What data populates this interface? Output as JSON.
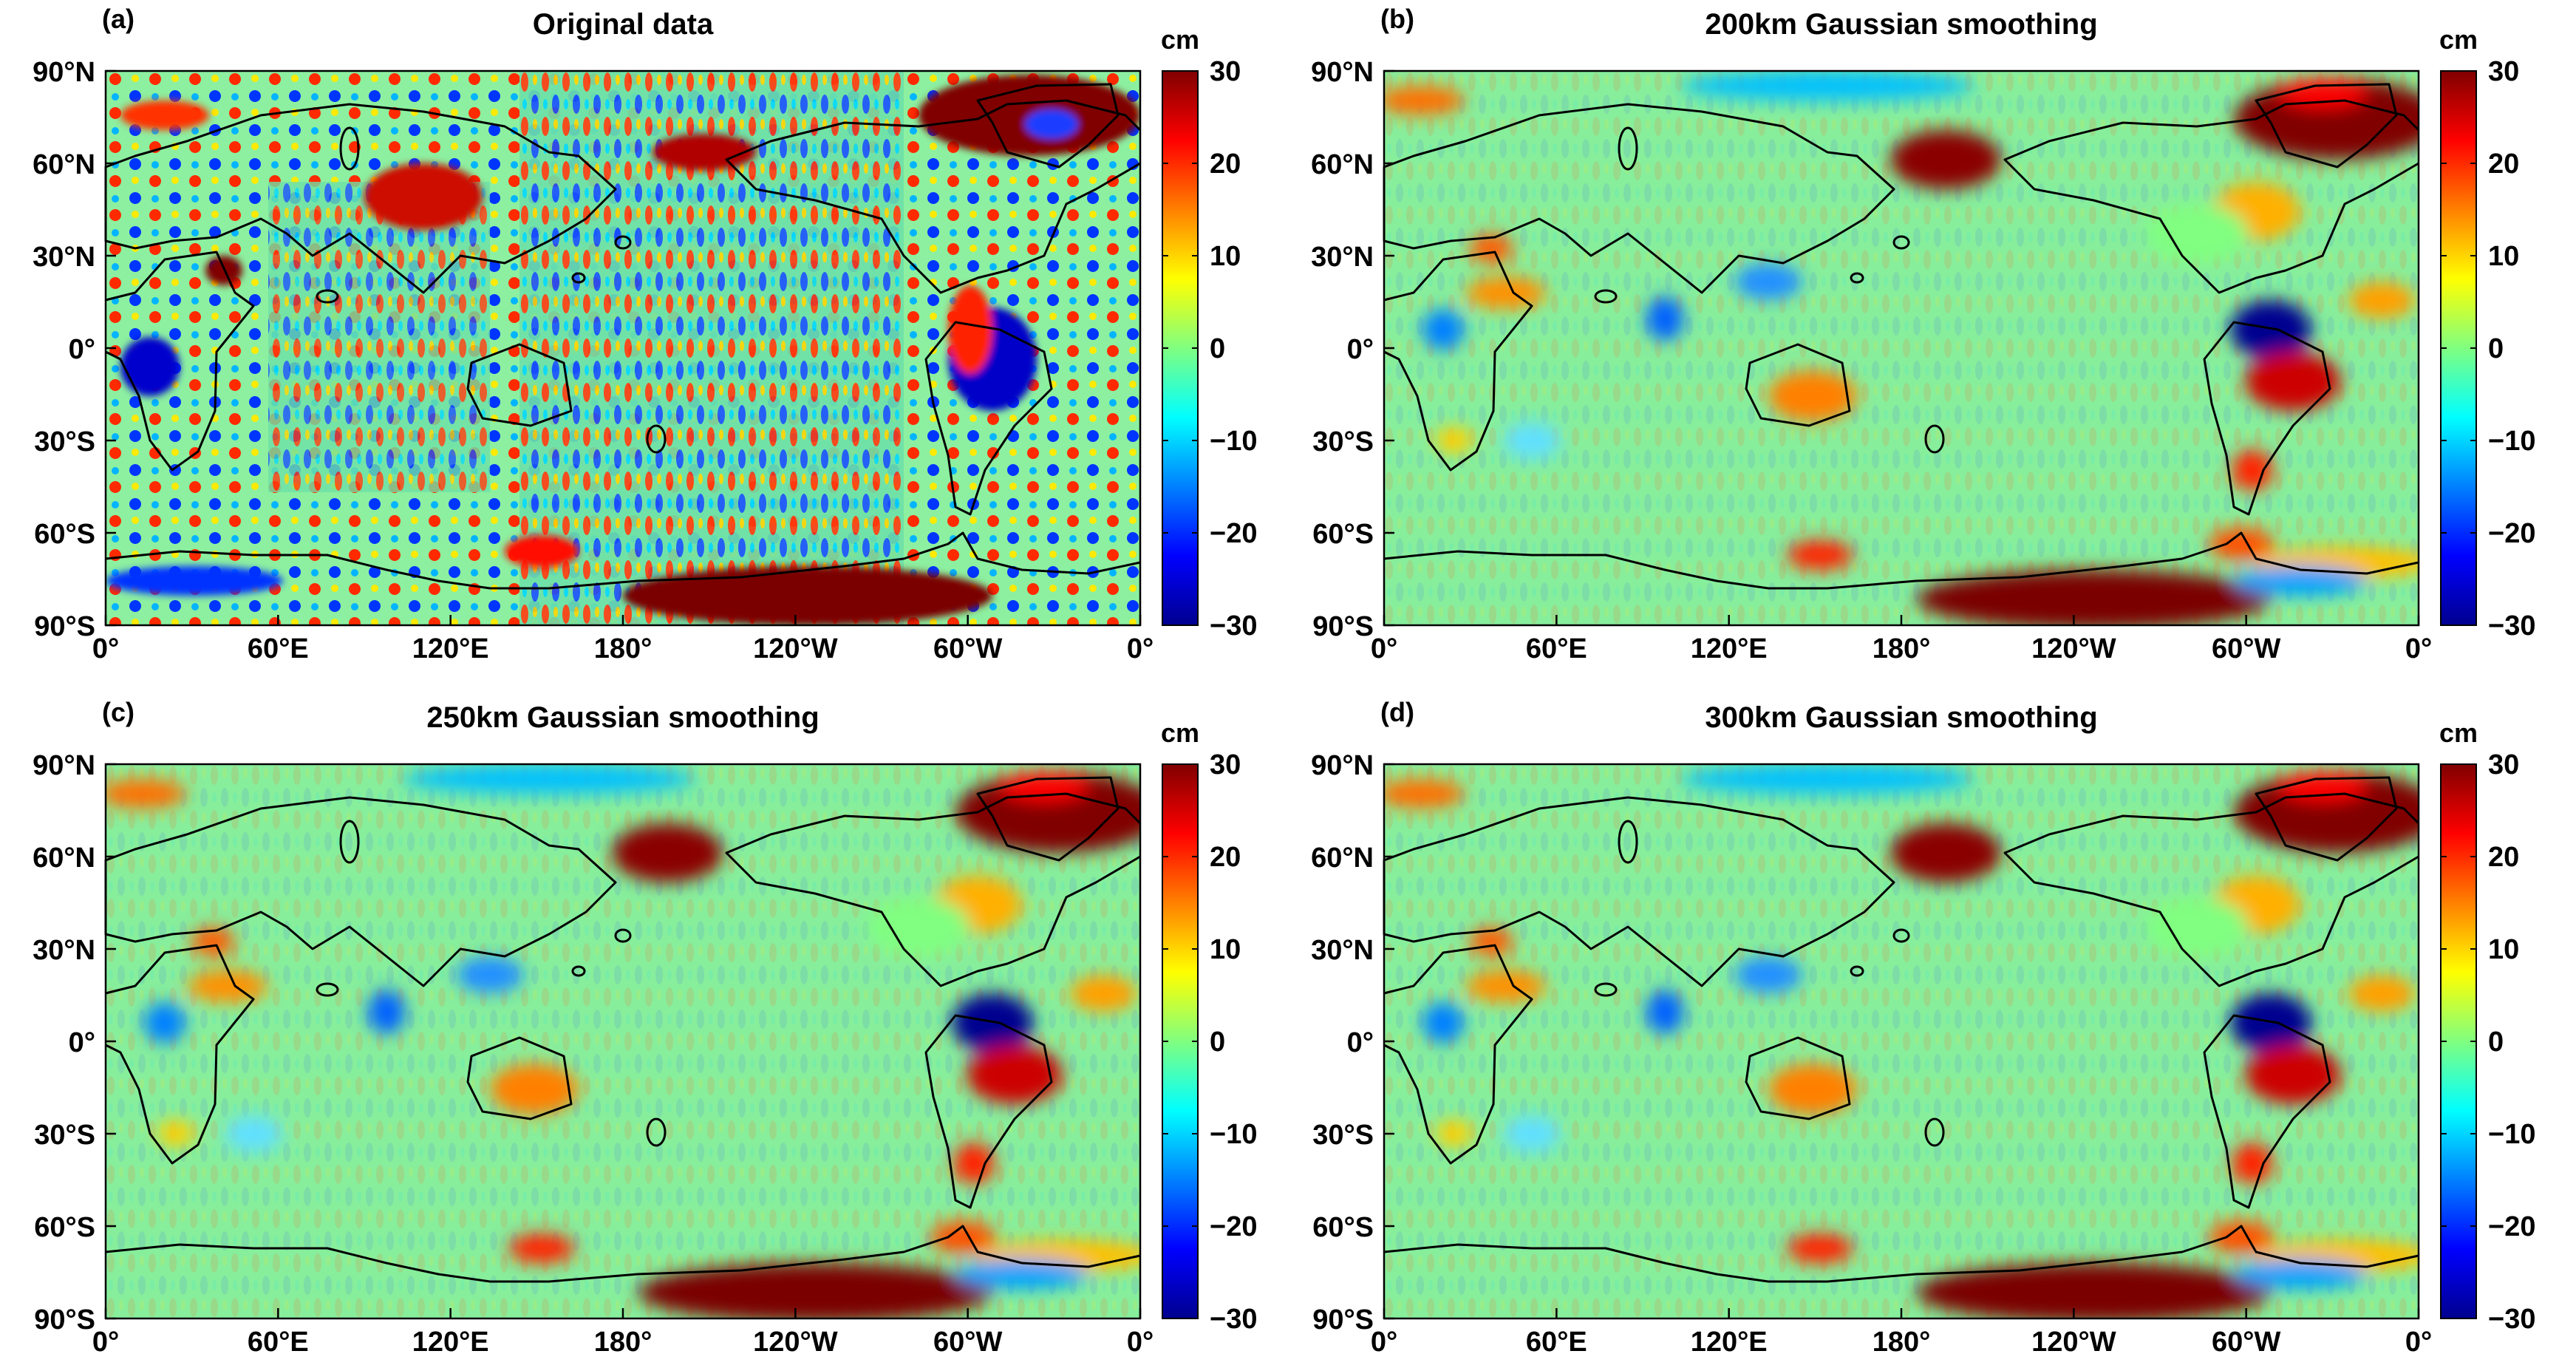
{
  "panels": [
    {
      "id": "a",
      "tag": "(a)",
      "title": "Original data",
      "pattern": "noisy"
    },
    {
      "id": "b",
      "tag": "(b)",
      "title": "200km Gaussian smoothing",
      "pattern": "smooth"
    },
    {
      "id": "c",
      "tag": "(c)",
      "title": "250km Gaussian smoothing",
      "pattern": "smooth"
    },
    {
      "id": "d",
      "tag": "(d)",
      "title": "300km Gaussian smoothing",
      "pattern": "smooth"
    }
  ],
  "lat_ticks": [
    "90°N",
    "60°N",
    "30°N",
    "0°",
    "30°S",
    "60°S",
    "90°S"
  ],
  "lon_ticks": [
    "0°",
    "60°E",
    "120°E",
    "180°",
    "120°W",
    "60°W",
    "0°"
  ],
  "colorbar": {
    "unit": "cm",
    "ticks": [
      "30",
      "20",
      "10",
      "0",
      "−10",
      "−20",
      "−30"
    ],
    "range": [
      -30,
      30
    ],
    "colormap": "jet"
  },
  "colors": {
    "jet": [
      "#00008f",
      "#0000ff",
      "#0080ff",
      "#00ffff",
      "#80ff80",
      "#ffff00",
      "#ff8000",
      "#ff0000",
      "#800000"
    ],
    "coastline": "#000000"
  }
}
